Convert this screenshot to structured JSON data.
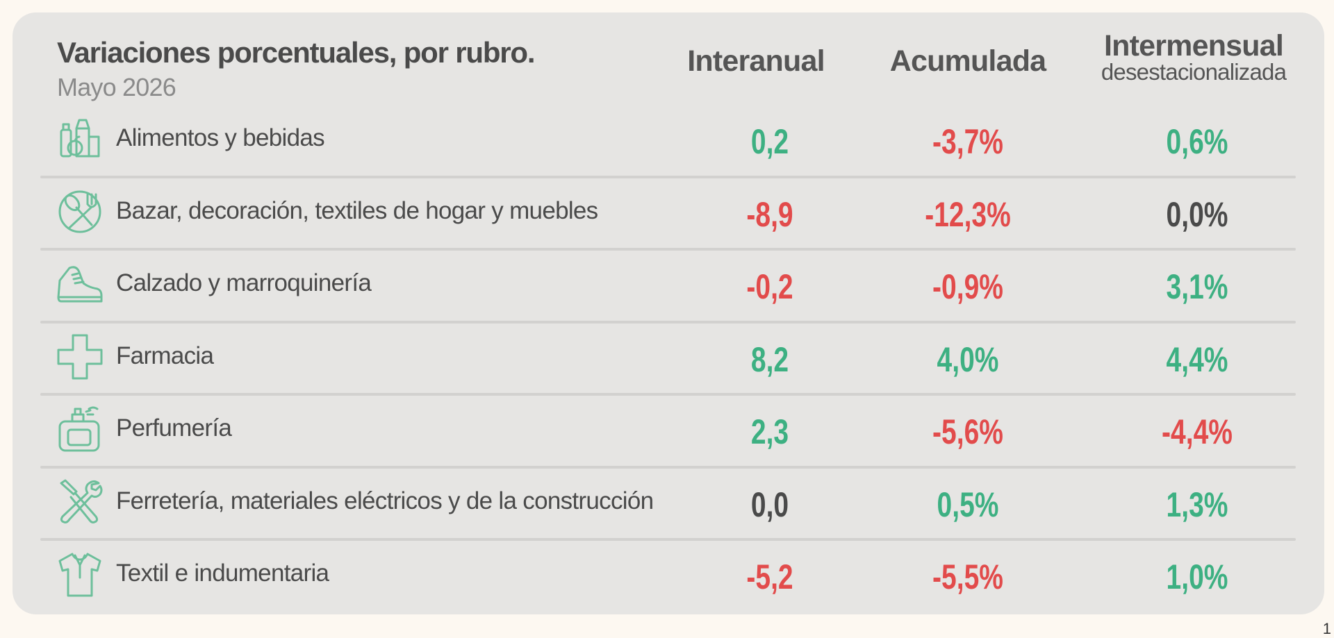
{
  "header": {
    "title": "Variaciones porcentuales, por rubro.",
    "subtitle": "Mayo 2026"
  },
  "columns": {
    "interanual": "Interanual",
    "acumulada": "Acumulada",
    "intermensual": "Intermensual",
    "intermensual_sub": "desestacionalizada"
  },
  "colors": {
    "positive": "#3db082",
    "negative": "#e24b4b",
    "neutral": "#4a4a4a",
    "icon": "#6dbf9b"
  },
  "rows": [
    {
      "icon": "grocery-icon",
      "label": "Alimentos y bebidas",
      "interanual": "0,2",
      "acumulada": "-3,7%",
      "intermensual": "0,6%"
    },
    {
      "icon": "cutlery-icon",
      "label": "Bazar, decoración, textiles de hogar y muebles",
      "interanual": "-8,9",
      "acumulada": "-12,3%",
      "intermensual": "0,0%"
    },
    {
      "icon": "sneaker-icon",
      "label": "Calzado y marroquinería",
      "interanual": "-0,2",
      "acumulada": "-0,9%",
      "intermensual": "3,1%"
    },
    {
      "icon": "cross-icon",
      "label": "Farmacia",
      "interanual": "8,2",
      "acumulada": "4,0%",
      "intermensual": "4,4%"
    },
    {
      "icon": "perfume-icon",
      "label": "Perfumería",
      "interanual": "2,3",
      "acumulada": "-5,6%",
      "intermensual": "-4,4%"
    },
    {
      "icon": "tools-icon",
      "label": "Ferretería, materiales eléctricos y de la construcción",
      "interanual": "0,0",
      "acumulada": "0,5%",
      "intermensual": "1,3%"
    },
    {
      "icon": "shirt-icon",
      "label": "Textil e indumentaria",
      "interanual": "-5,2",
      "acumulada": "-5,5%",
      "intermensual": "1,0%"
    }
  ],
  "chart_data": {
    "type": "table",
    "title": "Variaciones porcentuales, por rubro.",
    "subtitle": "Mayo 2026",
    "columns": [
      "Interanual",
      "Acumulada",
      "Intermensual desestacionalizada"
    ],
    "categories": [
      "Alimentos y bebidas",
      "Bazar, decoración, textiles de hogar y muebles",
      "Calzado y marroquinería",
      "Farmacia",
      "Perfumería",
      "Ferretería, materiales eléctricos y de la construcción",
      "Textil e indumentaria"
    ],
    "series": [
      {
        "name": "Interanual",
        "values": [
          0.2,
          -8.9,
          -0.2,
          8.2,
          2.3,
          0.0,
          -5.2
        ]
      },
      {
        "name": "Acumulada",
        "values": [
          -3.7,
          -12.3,
          -0.9,
          4.0,
          -5.6,
          0.5,
          -5.5
        ]
      },
      {
        "name": "Intermensual desestacionalizada",
        "values": [
          0.6,
          0.0,
          3.1,
          4.4,
          -4.4,
          1.3,
          1.0
        ]
      }
    ]
  },
  "page_number": "1"
}
